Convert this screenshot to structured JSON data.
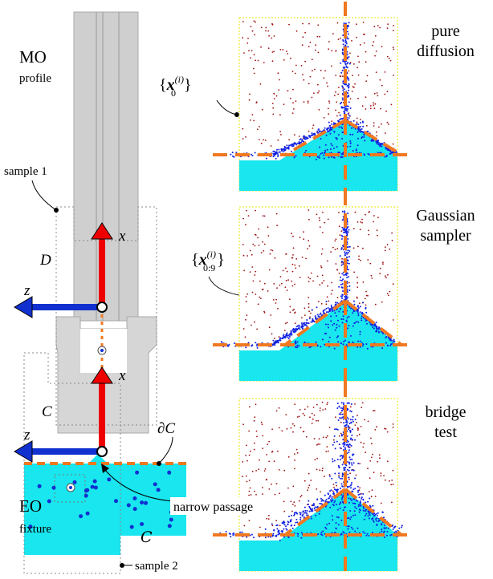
{
  "left": {
    "mo": "MO",
    "profile": "profile",
    "sample1": "sample 1",
    "d": "D",
    "z_top": "z",
    "x_top": "x",
    "x_mid": "x",
    "c_free": "C",
    "z_bottom": "z",
    "boundary": "∂C",
    "eo": "EO",
    "fixture": "fixture",
    "narrow_passage": "narrow passage",
    "c_obstacle": "C",
    "sample2": "sample 2",
    "set_label_1": {
      "open": "{",
      "base": "x",
      "sup": "(i)",
      "sub": "0",
      "close": "}"
    },
    "set_label_2": {
      "open": "{",
      "base": "x",
      "sup": "(i)",
      "sub": "0:9",
      "close": "}"
    }
  },
  "panels": [
    {
      "title_line1": "pure",
      "title_line2": "diffusion"
    },
    {
      "title_line1": "Gaussian",
      "title_line2": "sampler"
    },
    {
      "title_line1": "bridge",
      "title_line2": "test"
    }
  ]
}
